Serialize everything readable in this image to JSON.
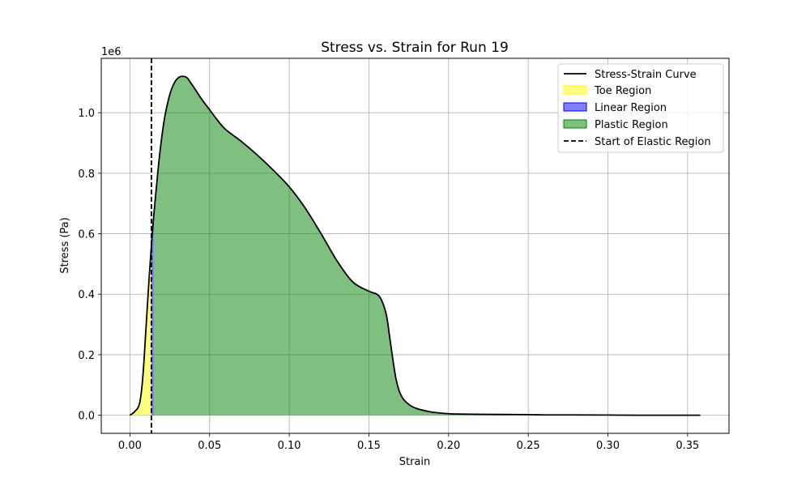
{
  "chart_data": {
    "type": "area",
    "title": "Stress vs. Strain for Run 19",
    "xlabel": "Strain",
    "ylabel": "Stress (Pa)",
    "y_offset_text": "1e6",
    "xlim": [
      -0.018,
      0.376
    ],
    "ylim": [
      -60000,
      1180000
    ],
    "grid": true,
    "legend_position": "top-right",
    "x_ticks": [
      0.0,
      0.05,
      0.1,
      0.15,
      0.2,
      0.25,
      0.3,
      0.35
    ],
    "x_tick_labels": [
      "0.00",
      "0.05",
      "0.10",
      "0.15",
      "0.20",
      "0.25",
      "0.30",
      "0.35"
    ],
    "y_ticks": [
      0,
      200000,
      400000,
      600000,
      800000,
      1000000
    ],
    "y_tick_labels": [
      "0.0",
      "0.2",
      "0.4",
      "0.6",
      "0.8",
      "1.0"
    ],
    "elastic_start_strain": 0.0135,
    "regions": {
      "toe": [
        0.0,
        0.0135
      ],
      "linear": [
        0.0135,
        0.015
      ],
      "plastic": [
        0.015,
        0.358
      ]
    },
    "series": [
      {
        "name": "Stress-Strain Curve",
        "x": [
          0.0,
          0.003,
          0.006,
          0.008,
          0.01,
          0.012,
          0.014,
          0.016,
          0.018,
          0.02,
          0.022,
          0.025,
          0.028,
          0.031,
          0.034,
          0.036,
          0.038,
          0.04,
          0.045,
          0.05,
          0.055,
          0.06,
          0.07,
          0.08,
          0.09,
          0.1,
          0.11,
          0.12,
          0.13,
          0.14,
          0.15,
          0.155,
          0.158,
          0.161,
          0.163,
          0.165,
          0.167,
          0.169,
          0.171,
          0.173,
          0.176,
          0.18,
          0.185,
          0.19,
          0.2,
          0.22,
          0.25,
          0.26,
          0.28,
          0.3,
          0.32,
          0.34,
          0.358
        ],
        "y": [
          0,
          12000,
          38000,
          120000,
          280000,
          450000,
          600000,
          720000,
          830000,
          920000,
          990000,
          1060000,
          1100000,
          1118000,
          1120000,
          1115000,
          1100000,
          1085000,
          1045000,
          1010000,
          975000,
          945000,
          905000,
          860000,
          810000,
          755000,
          685000,
          600000,
          510000,
          440000,
          410000,
          400000,
          380000,
          330000,
          260000,
          185000,
          120000,
          80000,
          58000,
          45000,
          32000,
          22000,
          15000,
          10000,
          5000,
          3000,
          2000,
          1000,
          1000,
          500,
          0,
          0,
          0
        ]
      },
      {
        "name": "Toe Region",
        "color": "#ffff00"
      },
      {
        "name": "Linear Region",
        "color": "#0000ff"
      },
      {
        "name": "Plastic Region",
        "color": "#008000"
      },
      {
        "name": "Start of Elastic Region",
        "color": "#000000"
      }
    ]
  }
}
